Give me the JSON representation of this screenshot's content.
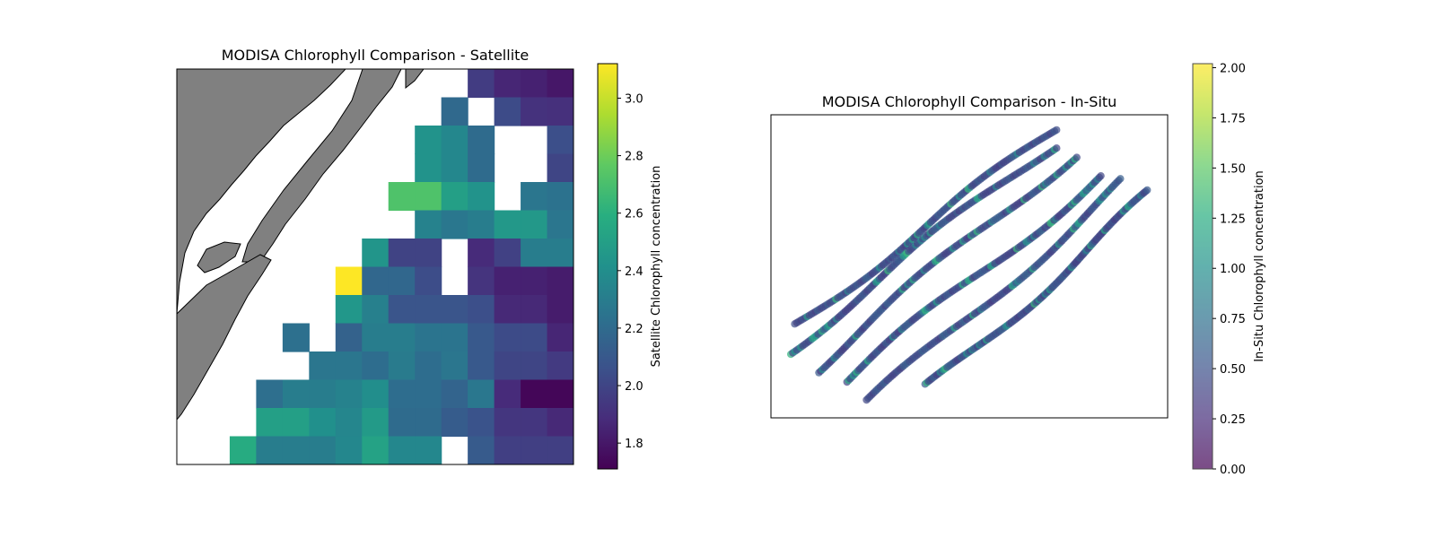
{
  "chart_data": [
    {
      "type": "heatmap",
      "title": "MODISA Chlorophyll Comparison - Satellite",
      "colorbar_label": "Satellite Chlorophyll concentration",
      "colormap": "viridis",
      "clim": [
        1.71,
        3.12
      ],
      "colorbar_ticks": [
        "1.8",
        "2.0",
        "2.2",
        "2.4",
        "2.6",
        "2.8",
        "3.0"
      ],
      "land_color": "#808080",
      "grid_values": [
        [
          null,
          null,
          null,
          null,
          null,
          null,
          null,
          null,
          null,
          null,
          null,
          1.96,
          1.86,
          1.84,
          1.8
        ],
        [
          null,
          null,
          null,
          null,
          null,
          null,
          null,
          null,
          null,
          null,
          2.19,
          null,
          2.03,
          1.91,
          1.9
        ],
        [
          null,
          null,
          null,
          null,
          null,
          null,
          null,
          null,
          null,
          2.43,
          2.36,
          2.2,
          null,
          null,
          2.05
        ],
        [
          null,
          null,
          null,
          null,
          null,
          null,
          null,
          null,
          null,
          2.43,
          2.36,
          2.2,
          null,
          null,
          2.0
        ],
        [
          null,
          null,
          null,
          null,
          null,
          null,
          null,
          null,
          2.72,
          2.72,
          2.5,
          2.43,
          null,
          2.26,
          2.24
        ],
        [
          null,
          null,
          null,
          null,
          null,
          null,
          null,
          null,
          null,
          2.33,
          2.27,
          2.3,
          2.46,
          2.46,
          2.26
        ],
        [
          null,
          null,
          null,
          null,
          null,
          null,
          null,
          2.44,
          1.99,
          1.99,
          null,
          1.88,
          1.98,
          2.3,
          2.3
        ],
        [
          null,
          null,
          null,
          null,
          null,
          null,
          3.12,
          2.18,
          2.18,
          2.04,
          null,
          1.92,
          1.84,
          1.84,
          1.82
        ],
        [
          null,
          null,
          null,
          null,
          null,
          null,
          2.45,
          2.32,
          2.08,
          2.08,
          2.08,
          2.05,
          1.87,
          1.87,
          1.82
        ],
        [
          null,
          null,
          null,
          null,
          2.23,
          null,
          2.15,
          2.3,
          2.3,
          2.25,
          2.25,
          2.1,
          2.03,
          2.03,
          1.86
        ],
        [
          null,
          null,
          null,
          null,
          null,
          2.26,
          2.26,
          2.21,
          2.29,
          2.21,
          2.26,
          2.1,
          2.0,
          2.0,
          1.95
        ],
        [
          null,
          null,
          null,
          2.22,
          2.3,
          2.3,
          2.33,
          2.4,
          2.21,
          2.21,
          2.16,
          2.27,
          1.88,
          1.73,
          1.73
        ],
        [
          null,
          null,
          null,
          2.5,
          2.5,
          2.41,
          2.35,
          2.47,
          2.2,
          2.2,
          2.12,
          2.07,
          1.93,
          1.93,
          1.87
        ],
        [
          null,
          null,
          2.57,
          2.3,
          2.3,
          2.3,
          2.36,
          2.52,
          2.36,
          2.36,
          null,
          2.11,
          1.97,
          1.97,
          1.97
        ]
      ]
    },
    {
      "type": "scatter",
      "title": "MODISA Chlorophyll Comparison - In-Situ",
      "colorbar_label": "In-Situ Chlorophyll concentration",
      "colormap": "viridis",
      "alpha": 0.7,
      "clim": [
        0.0,
        2.02
      ],
      "colorbar_ticks": [
        "0.00",
        "0.25",
        "0.50",
        "0.75",
        "1.00",
        "1.25",
        "1.50",
        "1.75",
        "2.00"
      ],
      "tracks": [
        {
          "start": [
            0.06,
            0.31
          ],
          "end": [
            0.72,
            0.95
          ]
        },
        {
          "start": [
            0.04,
            0.22
          ],
          "end": [
            0.71,
            0.9
          ]
        },
        {
          "start": [
            0.11,
            0.16
          ],
          "end": [
            0.76,
            0.87
          ]
        },
        {
          "start": [
            0.19,
            0.12
          ],
          "end": [
            0.83,
            0.8
          ]
        },
        {
          "start": [
            0.25,
            0.05
          ],
          "end": [
            0.89,
            0.78
          ]
        },
        {
          "start": [
            0.4,
            0.1
          ],
          "end": [
            0.96,
            0.74
          ]
        }
      ]
    }
  ]
}
